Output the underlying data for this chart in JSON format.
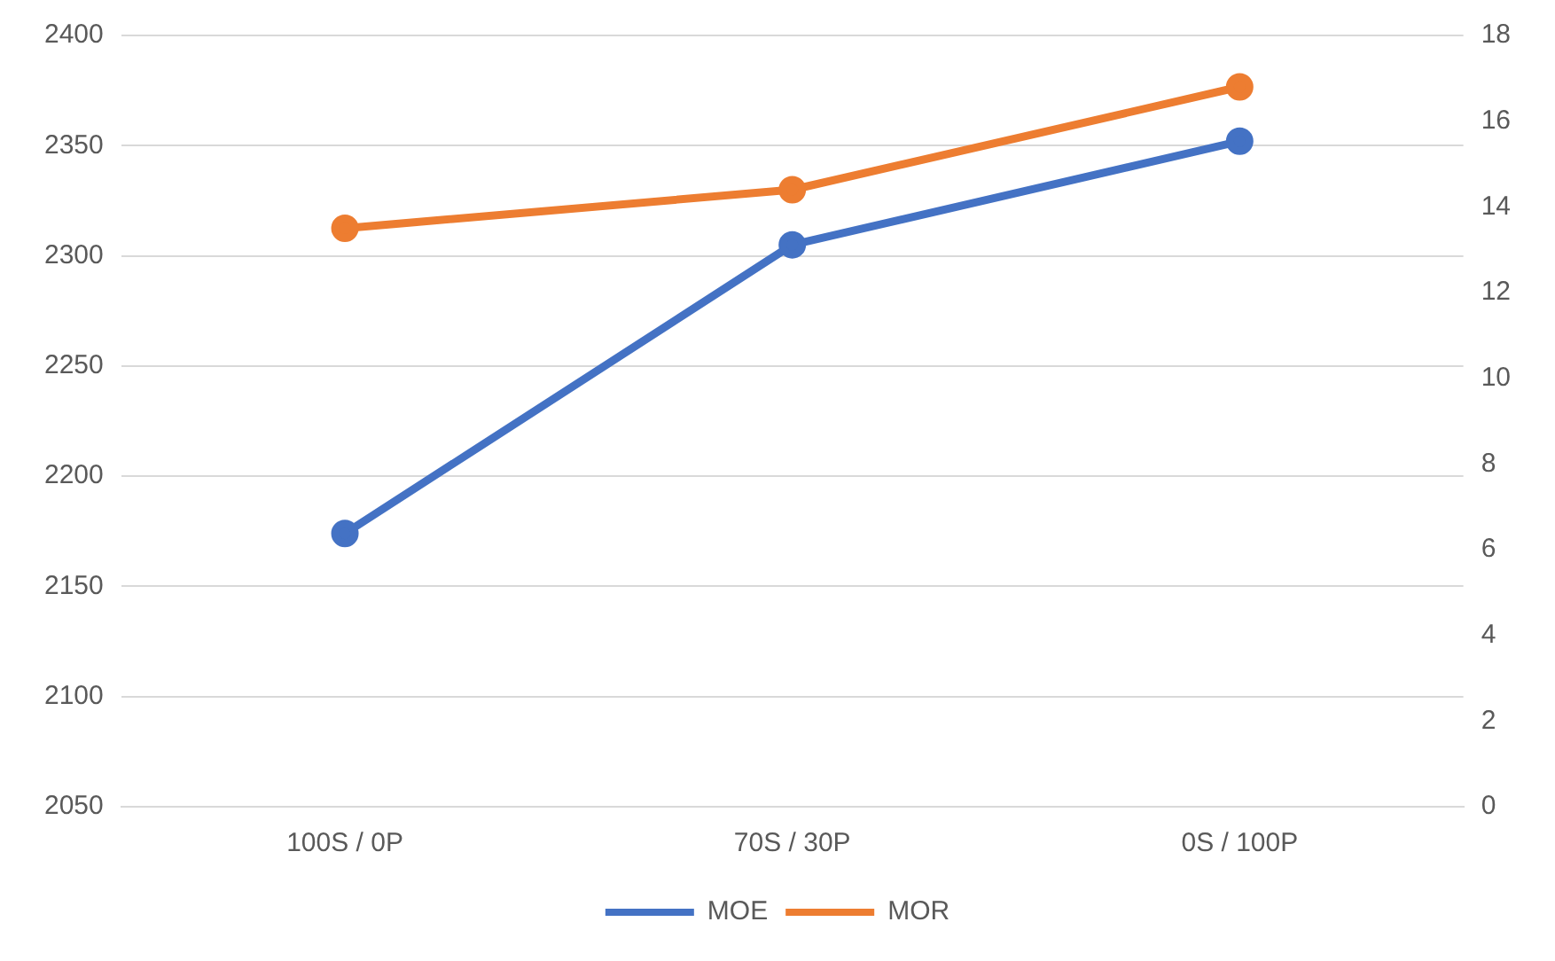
{
  "chart_data": {
    "type": "line",
    "categories": [
      "100S / 0P",
      "70S / 30P",
      "0S / 100P"
    ],
    "series": [
      {
        "name": "MOE",
        "color": "#4472c4",
        "values": [
          2174,
          2305,
          2352
        ]
      },
      {
        "name": "MOR",
        "color": "#ed7d31",
        "values": [
          13.5,
          14.4,
          16.8
        ],
        "axis": "y2"
      }
    ],
    "ylim": [
      2050,
      2400
    ],
    "yticks": [
      2050,
      2100,
      2150,
      2200,
      2250,
      2300,
      2350,
      2400
    ],
    "y2lim": [
      0,
      18
    ],
    "y2ticks": [
      0,
      2,
      4,
      6,
      8,
      10,
      12,
      14,
      16,
      18
    ],
    "grid": "y",
    "legend": "bottom",
    "marker": "circle",
    "line_style": "solid"
  }
}
